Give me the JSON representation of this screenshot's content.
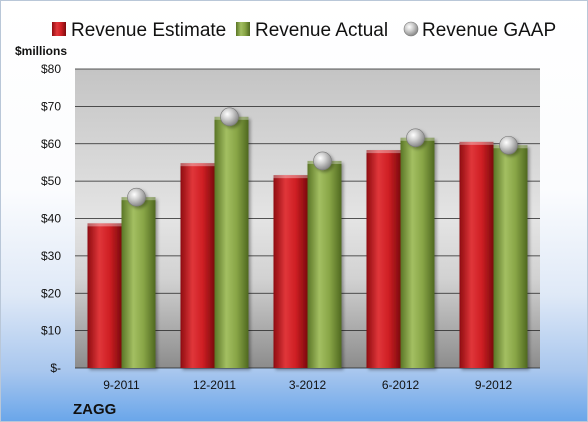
{
  "chart_data": {
    "type": "bar",
    "title": "",
    "ylabel": "$millions",
    "ylim": [
      0,
      80
    ],
    "yticks": [
      {
        "value": 0,
        "label": "$-"
      },
      {
        "value": 10,
        "label": "$10"
      },
      {
        "value": 20,
        "label": "$20"
      },
      {
        "value": 30,
        "label": "$30"
      },
      {
        "value": 40,
        "label": "$40"
      },
      {
        "value": 50,
        "label": "$50"
      },
      {
        "value": 60,
        "label": "$60"
      },
      {
        "value": 70,
        "label": "$70"
      },
      {
        "value": 80,
        "label": "$80"
      }
    ],
    "categories": [
      "9-2011",
      "12-2011",
      "3-2012",
      "6-2012",
      "9-2012"
    ],
    "series": [
      {
        "name": "Revenue Estimate",
        "kind": "bar",
        "color": "#c8161e",
        "values": [
          38.7,
          54.8,
          51.6,
          58.3,
          60.5
        ]
      },
      {
        "name": "Revenue Actual",
        "kind": "bar",
        "color": "#7f9f3c",
        "values": [
          45.7,
          67.2,
          55.4,
          61.6,
          59.6
        ]
      },
      {
        "name": "Revenue GAAP",
        "kind": "marker",
        "color": "#b8b8b8",
        "values": [
          45.7,
          67.2,
          55.4,
          61.6,
          59.6
        ]
      }
    ],
    "grid": true,
    "legend_position": "top"
  },
  "footer": {
    "company": "ZAGG"
  }
}
